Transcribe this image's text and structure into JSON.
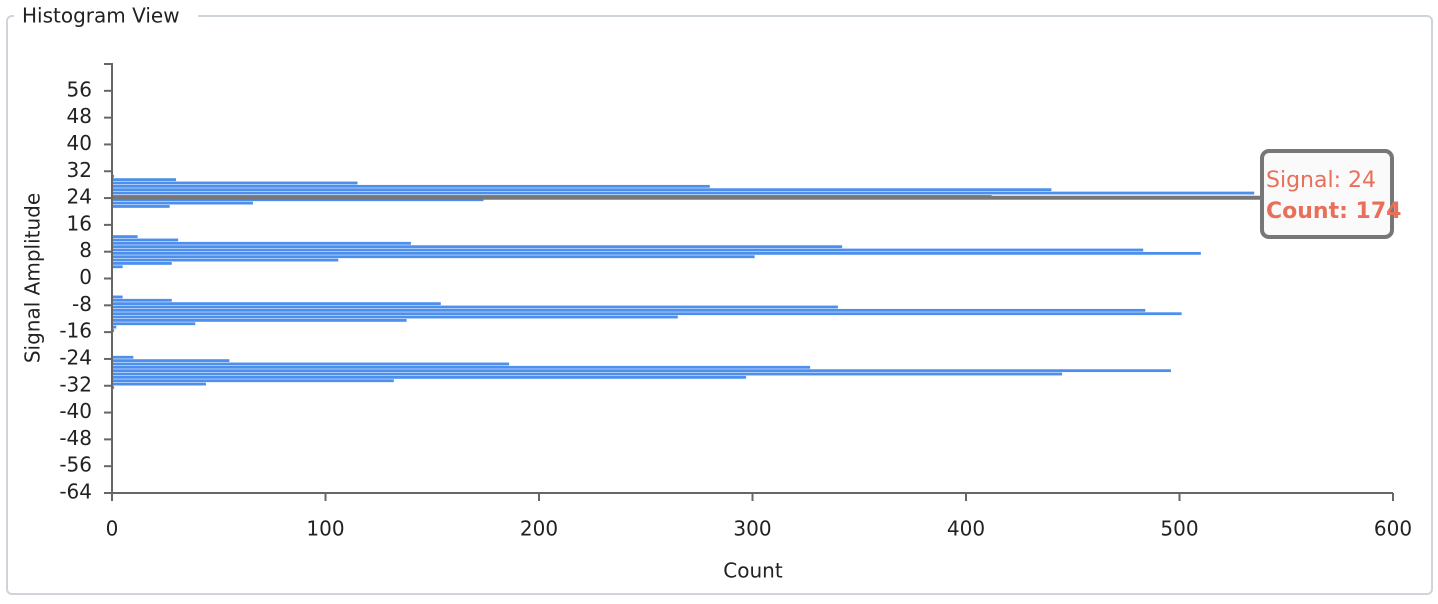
{
  "panel": {
    "title": "Histogram View"
  },
  "chart_data": {
    "type": "bar",
    "orientation": "horizontal",
    "ylabel": "Signal Amplitude",
    "xlabel": "Count",
    "color": "#4d8fec",
    "y": [
      31,
      30,
      29,
      28,
      27,
      26,
      25,
      24,
      23,
      22,
      13,
      12,
      11,
      10,
      9,
      8,
      7,
      6,
      5,
      4,
      -5,
      -6,
      -7,
      -8,
      -9,
      -10,
      -11,
      -12,
      -13,
      -14,
      -15,
      -23,
      -24,
      -25,
      -26,
      -27,
      -28,
      -29,
      -30,
      -31,
      -32
    ],
    "values": [
      1,
      30,
      115,
      280,
      440,
      535,
      412,
      174,
      66,
      27,
      12,
      31,
      140,
      342,
      483,
      510,
      301,
      106,
      28,
      5,
      5,
      28,
      154,
      340,
      484,
      501,
      265,
      138,
      39,
      2,
      1,
      10,
      55,
      186,
      327,
      496,
      445,
      297,
      132,
      44,
      1
    ],
    "xlim": [
      0,
      600
    ],
    "xticks": [
      0,
      100,
      200,
      300,
      400,
      500,
      600
    ],
    "ylim": [
      -64,
      64
    ],
    "yticks": [
      -64,
      -56,
      -48,
      -40,
      -32,
      -24,
      -16,
      -8,
      0,
      8,
      16,
      24,
      32,
      40,
      48,
      56
    ],
    "tooltip": {
      "signal": "Signal: 24",
      "count": "Count: 174"
    }
  }
}
